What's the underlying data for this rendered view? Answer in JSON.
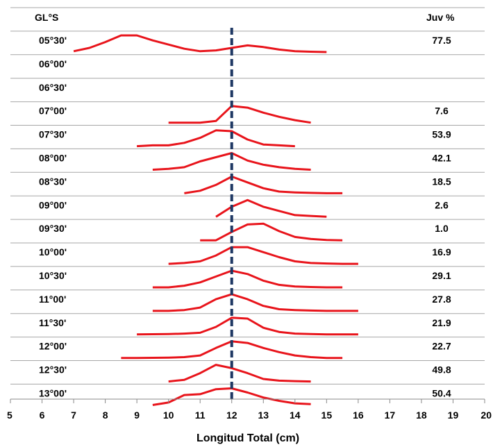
{
  "chart_data": {
    "type": "line",
    "title": "",
    "xlabel": "Longitud Total (cm)",
    "ylabel": "",
    "xlim": [
      5,
      20
    ],
    "xticks": [
      5,
      6,
      7,
      8,
      9,
      10,
      11,
      12,
      13,
      14,
      15,
      16,
      17,
      18,
      19,
      20
    ],
    "row_header": "GL°S",
    "value_header": "Juv %",
    "reference_line_x": 12,
    "grid": "horizontal",
    "line_color": "#e8141b",
    "reference_color": "#1f3864",
    "rows": [
      {
        "label": "05°30'",
        "juv": "77.5",
        "points": [
          [
            7.0,
            0.05
          ],
          [
            7.5,
            0.25
          ],
          [
            8.0,
            0.6
          ],
          [
            8.5,
            1.0
          ],
          [
            9.0,
            1.0
          ],
          [
            9.5,
            0.7
          ],
          [
            10.0,
            0.45
          ],
          [
            10.5,
            0.2
          ],
          [
            11.0,
            0.05
          ],
          [
            11.5,
            0.1
          ],
          [
            12.0,
            0.25
          ],
          [
            12.5,
            0.4
          ],
          [
            13.0,
            0.3
          ],
          [
            13.5,
            0.15
          ],
          [
            14.0,
            0.05
          ],
          [
            14.5,
            0.02
          ],
          [
            15.0,
            0.0
          ]
        ]
      },
      {
        "label": "06°00'",
        "juv": "",
        "points": []
      },
      {
        "label": "06°30'",
        "juv": "",
        "points": []
      },
      {
        "label": "07°00'",
        "juv": "7.6",
        "points": [
          [
            10.0,
            0.0
          ],
          [
            10.5,
            0.0
          ],
          [
            11.0,
            0.0
          ],
          [
            11.5,
            0.1
          ],
          [
            12.0,
            1.0
          ],
          [
            12.5,
            0.9
          ],
          [
            13.0,
            0.6
          ],
          [
            13.5,
            0.35
          ],
          [
            14.0,
            0.15
          ],
          [
            14.5,
            0.0
          ]
        ]
      },
      {
        "label": "07°30'",
        "juv": "53.9",
        "points": [
          [
            9.0,
            0.0
          ],
          [
            9.5,
            0.05
          ],
          [
            10.0,
            0.05
          ],
          [
            10.5,
            0.2
          ],
          [
            11.0,
            0.5
          ],
          [
            11.5,
            0.95
          ],
          [
            12.0,
            0.9
          ],
          [
            12.5,
            0.4
          ],
          [
            13.0,
            0.1
          ],
          [
            13.5,
            0.05
          ],
          [
            14.0,
            0.0
          ]
        ]
      },
      {
        "label": "08°00'",
        "juv": "42.1",
        "points": [
          [
            9.5,
            0.0
          ],
          [
            10.0,
            0.05
          ],
          [
            10.5,
            0.15
          ],
          [
            11.0,
            0.5
          ],
          [
            11.5,
            0.75
          ],
          [
            12.0,
            1.0
          ],
          [
            12.5,
            0.55
          ],
          [
            13.0,
            0.3
          ],
          [
            13.5,
            0.15
          ],
          [
            14.0,
            0.05
          ],
          [
            14.5,
            0.0
          ]
        ]
      },
      {
        "label": "08°30'",
        "juv": "18.5",
        "points": [
          [
            10.5,
            0.0
          ],
          [
            11.0,
            0.15
          ],
          [
            11.5,
            0.5
          ],
          [
            12.0,
            1.0
          ],
          [
            12.5,
            0.65
          ],
          [
            13.0,
            0.3
          ],
          [
            13.5,
            0.1
          ],
          [
            14.0,
            0.05
          ],
          [
            14.5,
            0.02
          ],
          [
            15.0,
            0.0
          ],
          [
            15.5,
            0.0
          ]
        ]
      },
      {
        "label": "09°00'",
        "juv": "2.6",
        "points": [
          [
            11.5,
            0.0
          ],
          [
            12.0,
            0.6
          ],
          [
            12.5,
            1.0
          ],
          [
            13.0,
            0.6
          ],
          [
            13.5,
            0.35
          ],
          [
            14.0,
            0.1
          ],
          [
            14.5,
            0.05
          ],
          [
            15.0,
            0.0
          ]
        ]
      },
      {
        "label": "09°30'",
        "juv": "1.0",
        "points": [
          [
            11.0,
            0.0
          ],
          [
            11.5,
            0.0
          ],
          [
            12.0,
            0.5
          ],
          [
            12.5,
            0.95
          ],
          [
            13.0,
            1.0
          ],
          [
            13.5,
            0.55
          ],
          [
            14.0,
            0.2
          ],
          [
            14.5,
            0.08
          ],
          [
            15.0,
            0.02
          ],
          [
            15.5,
            0.0
          ]
        ]
      },
      {
        "label": "10°00'",
        "juv": "16.9",
        "points": [
          [
            10.0,
            0.0
          ],
          [
            10.5,
            0.05
          ],
          [
            11.0,
            0.15
          ],
          [
            11.5,
            0.5
          ],
          [
            12.0,
            1.0
          ],
          [
            12.5,
            1.0
          ],
          [
            13.0,
            0.7
          ],
          [
            13.5,
            0.4
          ],
          [
            14.0,
            0.15
          ],
          [
            14.5,
            0.05
          ],
          [
            15.0,
            0.02
          ],
          [
            15.5,
            0.0
          ],
          [
            16.0,
            0.0
          ]
        ]
      },
      {
        "label": "10°30'",
        "juv": "29.1",
        "points": [
          [
            9.5,
            0.0
          ],
          [
            10.0,
            0.0
          ],
          [
            10.5,
            0.1
          ],
          [
            11.0,
            0.3
          ],
          [
            11.5,
            0.65
          ],
          [
            12.0,
            1.0
          ],
          [
            12.5,
            0.8
          ],
          [
            13.0,
            0.4
          ],
          [
            13.5,
            0.15
          ],
          [
            14.0,
            0.05
          ],
          [
            14.5,
            0.02
          ],
          [
            15.0,
            0.0
          ],
          [
            15.5,
            0.0
          ]
        ]
      },
      {
        "label": "11°00'",
        "juv": "27.8",
        "points": [
          [
            9.5,
            0.0
          ],
          [
            10.0,
            0.0
          ],
          [
            10.5,
            0.05
          ],
          [
            11.0,
            0.2
          ],
          [
            11.5,
            0.7
          ],
          [
            12.0,
            1.0
          ],
          [
            12.5,
            0.7
          ],
          [
            13.0,
            0.3
          ],
          [
            13.5,
            0.1
          ],
          [
            14.0,
            0.05
          ],
          [
            14.5,
            0.02
          ],
          [
            15.0,
            0.0
          ],
          [
            16.0,
            0.0
          ]
        ]
      },
      {
        "label": "11°30'",
        "juv": "21.9",
        "points": [
          [
            9.0,
            0.0
          ],
          [
            10.0,
            0.02
          ],
          [
            10.5,
            0.05
          ],
          [
            11.0,
            0.1
          ],
          [
            11.5,
            0.45
          ],
          [
            12.0,
            1.0
          ],
          [
            12.5,
            0.95
          ],
          [
            13.0,
            0.4
          ],
          [
            13.5,
            0.15
          ],
          [
            14.0,
            0.05
          ],
          [
            14.5,
            0.02
          ],
          [
            15.0,
            0.0
          ],
          [
            16.0,
            0.0
          ]
        ]
      },
      {
        "label": "12°00'",
        "juv": "22.7",
        "points": [
          [
            8.5,
            0.0
          ],
          [
            9.0,
            0.0
          ],
          [
            10.0,
            0.02
          ],
          [
            10.5,
            0.05
          ],
          [
            11.0,
            0.15
          ],
          [
            11.5,
            0.6
          ],
          [
            12.0,
            1.0
          ],
          [
            12.5,
            0.9
          ],
          [
            13.0,
            0.6
          ],
          [
            13.5,
            0.35
          ],
          [
            14.0,
            0.15
          ],
          [
            14.5,
            0.05
          ],
          [
            15.0,
            0.0
          ],
          [
            15.5,
            0.0
          ]
        ]
      },
      {
        "label": "12°30'",
        "juv": "49.8",
        "points": [
          [
            10.0,
            0.0
          ],
          [
            10.5,
            0.1
          ],
          [
            11.0,
            0.5
          ],
          [
            11.5,
            1.0
          ],
          [
            12.0,
            0.8
          ],
          [
            12.5,
            0.5
          ],
          [
            13.0,
            0.15
          ],
          [
            13.5,
            0.05
          ],
          [
            14.0,
            0.02
          ],
          [
            14.5,
            0.0
          ]
        ]
      },
      {
        "label": "13°00'",
        "juv": "50.4",
        "points": [
          [
            9.5,
            0.0
          ],
          [
            10.0,
            0.15
          ],
          [
            10.5,
            0.6
          ],
          [
            11.0,
            0.65
          ],
          [
            11.5,
            0.95
          ],
          [
            12.0,
            1.0
          ],
          [
            12.5,
            0.75
          ],
          [
            13.0,
            0.45
          ],
          [
            13.5,
            0.25
          ],
          [
            14.0,
            0.1
          ],
          [
            14.5,
            0.05
          ]
        ]
      }
    ]
  }
}
